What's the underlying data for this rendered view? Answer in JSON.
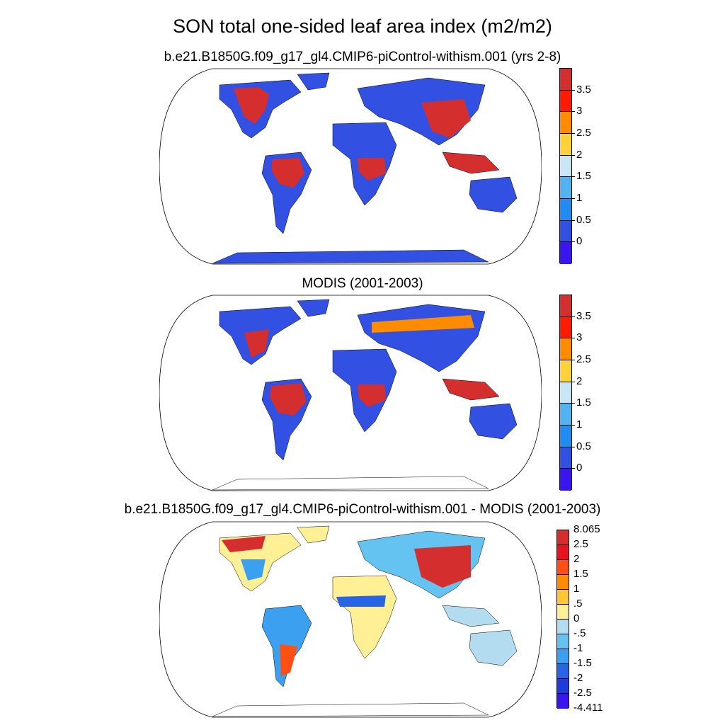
{
  "title": "SON total one-sided leaf area index (m2/m2)",
  "panels": [
    {
      "subtitle": "b.e21.B1850G.f09_g17_gl4.CMIP6-piControl-withism.001 (yrs 2-8)"
    },
    {
      "subtitle": "MODIS (2001-2003)"
    },
    {
      "subtitle": "b.e21.B1850G.f09_g17_gl4.CMIP6-piControl-withism.001 - MODIS (2001-2003)"
    }
  ],
  "colorbars": {
    "lai": {
      "labels": [
        "3.5",
        "3",
        "2.5",
        "2",
        "1.5",
        "1",
        "0.5",
        "0"
      ],
      "colors": [
        "#d42e2e",
        "#ff1a00",
        "#ff8c00",
        "#ffd23c",
        "#c8e6f5",
        "#50b4f0",
        "#1e8cf0",
        "#3250e1",
        "#3c14f0"
      ]
    },
    "diff": {
      "labels": [
        "8.065",
        "2.5",
        "2",
        "1.5",
        "1",
        ".5",
        "0",
        "-.5",
        "-1",
        "-1.5",
        "-2",
        "-2.5",
        "-4.411"
      ],
      "colors": [
        "#d42e2e",
        "#e6141e",
        "#ff5014",
        "#ff8c00",
        "#ffc832",
        "#fff096",
        "#b4dcf0",
        "#64c3f0",
        "#3ca0f0",
        "#2864e6",
        "#1e3cdc",
        "#3c14f0"
      ]
    }
  },
  "colors": {
    "land_low": "#3250e1",
    "forest_high": "#d42e2e",
    "diff_neutral": "#fff096"
  }
}
